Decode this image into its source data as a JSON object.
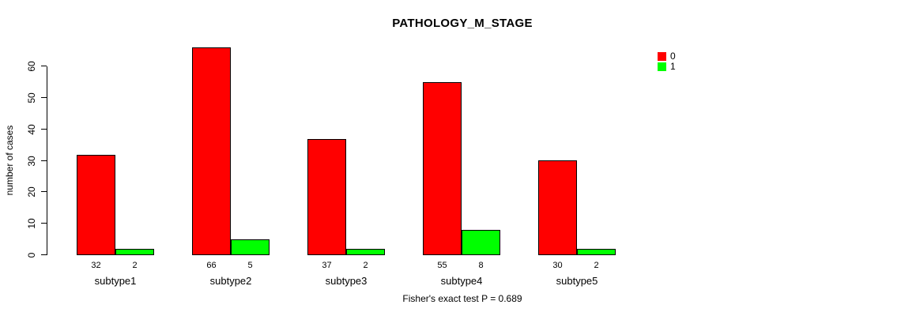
{
  "title": "PATHOLOGY_M_STAGE",
  "ylabel": "number of cases",
  "footer": "Fisher's exact test P = 0.689",
  "legend": [
    {
      "label": "0",
      "color": "#FF0000"
    },
    {
      "label": "1",
      "color": "#00FF00"
    }
  ],
  "chart_data": {
    "type": "bar",
    "title": "PATHOLOGY_M_STAGE",
    "categories": [
      "subtype1",
      "subtype2",
      "subtype3",
      "subtype4",
      "subtype5"
    ],
    "series": [
      {
        "name": "0",
        "color": "#FF0000",
        "values": [
          32,
          66,
          37,
          55,
          30
        ]
      },
      {
        "name": "1",
        "color": "#00FF00",
        "values": [
          2,
          5,
          2,
          8,
          2
        ]
      }
    ],
    "bar_value_labels": [
      [
        "32",
        "2"
      ],
      [
        "66",
        "5"
      ],
      [
        "37",
        "2"
      ],
      [
        "55",
        "8"
      ],
      [
        "30",
        "2"
      ]
    ],
    "ylabel": "number of cases",
    "xlabel": "",
    "yticks": [
      0,
      10,
      20,
      30,
      40,
      50,
      60
    ],
    "ylim": [
      0,
      66
    ],
    "grid": false,
    "legend_position": "top-right",
    "annotation": "Fisher's exact test P = 0.689"
  }
}
